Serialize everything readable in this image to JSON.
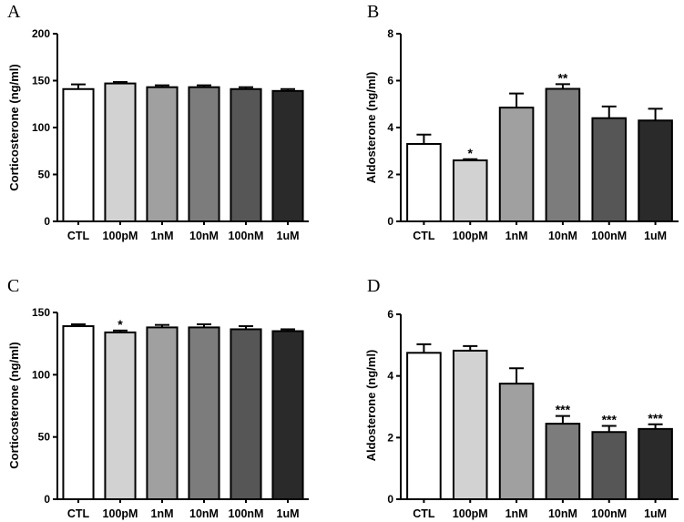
{
  "chart_data": [
    {
      "panel": "A",
      "type": "bar",
      "ylabel": "Corticosterone (ng/ml)",
      "ylim": [
        0,
        200
      ],
      "yticks": [
        0,
        50,
        100,
        150,
        200
      ],
      "categories": [
        "CTL",
        "100pM",
        "1nM",
        "10nM",
        "100nM",
        "1uM"
      ],
      "values": [
        141,
        147,
        143,
        143,
        141,
        139
      ],
      "errors": [
        5,
        1.5,
        2,
        2,
        2,
        2
      ],
      "significance": [
        "",
        "",
        "",
        "",
        "",
        ""
      ],
      "colors": [
        "#ffffff",
        "#d2d2d2",
        "#a0a0a0",
        "#7c7c7c",
        "#565656",
        "#2a2a2a"
      ]
    },
    {
      "panel": "B",
      "type": "bar",
      "ylabel": "Aldosterone (ng/ml)",
      "ylim": [
        0,
        8
      ],
      "yticks": [
        0,
        2,
        4,
        6,
        8
      ],
      "categories": [
        "CTL",
        "100pM",
        "1nM",
        "10nM",
        "100nM",
        "1uM"
      ],
      "values": [
        3.3,
        2.6,
        4.85,
        5.65,
        4.4,
        4.3
      ],
      "errors": [
        0.4,
        0.05,
        0.6,
        0.2,
        0.5,
        0.5
      ],
      "significance": [
        "",
        "*",
        "",
        "**",
        "",
        ""
      ],
      "colors": [
        "#ffffff",
        "#d2d2d2",
        "#a0a0a0",
        "#7c7c7c",
        "#565656",
        "#2a2a2a"
      ]
    },
    {
      "panel": "C",
      "type": "bar",
      "ylabel": "Corticosterone (ng/ml)",
      "ylim": [
        0,
        150
      ],
      "yticks": [
        0,
        50,
        100,
        150
      ],
      "categories": [
        "CTL",
        "100pM",
        "1nM",
        "10nM",
        "100nM",
        "1uM"
      ],
      "values": [
        139,
        134,
        138,
        138,
        136.5,
        135
      ],
      "errors": [
        1.5,
        1.5,
        2,
        2.5,
        2.5,
        1.5
      ],
      "significance": [
        "",
        "*",
        "",
        "",
        "",
        ""
      ],
      "colors": [
        "#ffffff",
        "#d2d2d2",
        "#a0a0a0",
        "#7c7c7c",
        "#565656",
        "#2a2a2a"
      ]
    },
    {
      "panel": "D",
      "type": "bar",
      "ylabel": "Aldosterone (ng/ml)",
      "ylim": [
        0,
        6
      ],
      "yticks": [
        0,
        2,
        4,
        6
      ],
      "categories": [
        "CTL",
        "100pM",
        "1nM",
        "10nM",
        "100nM",
        "1uM"
      ],
      "values": [
        4.75,
        4.82,
        3.75,
        2.45,
        2.18,
        2.28
      ],
      "errors": [
        0.28,
        0.15,
        0.5,
        0.25,
        0.2,
        0.15
      ],
      "significance": [
        "",
        "",
        "",
        "***",
        "***",
        "***"
      ],
      "colors": [
        "#ffffff",
        "#d2d2d2",
        "#a0a0a0",
        "#7c7c7c",
        "#565656",
        "#2a2a2a"
      ]
    }
  ]
}
